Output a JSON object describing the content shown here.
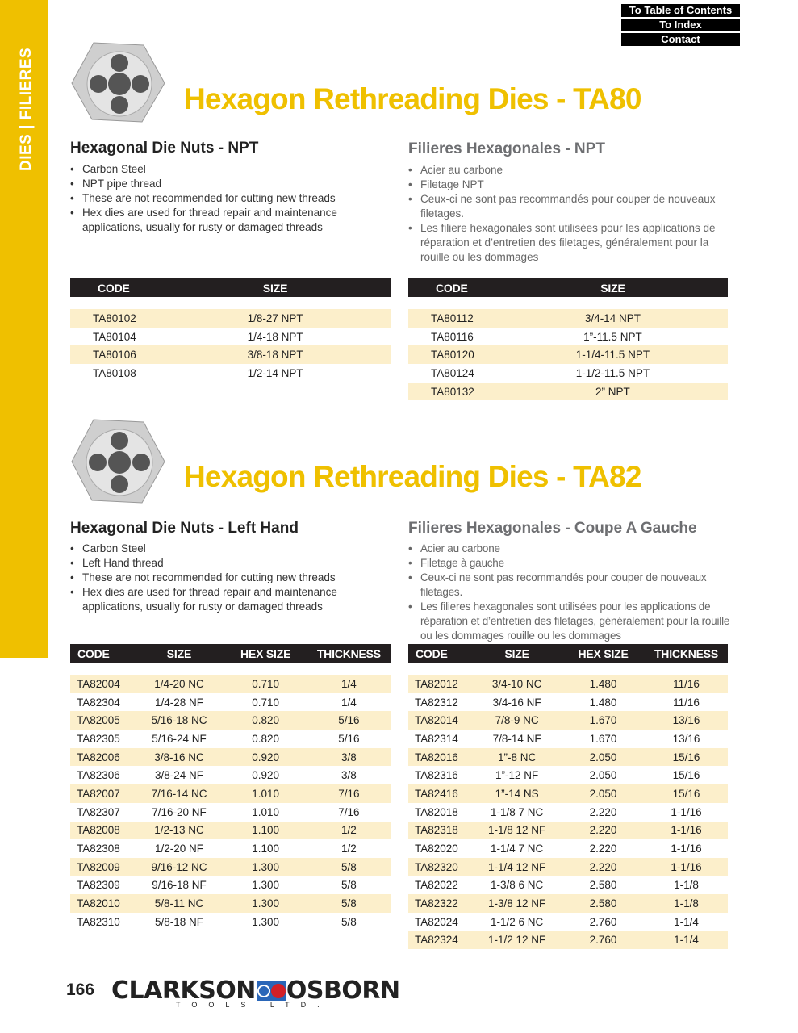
{
  "sidebar": {
    "label": "DIES | FILIERES",
    "color": "#EFC000"
  },
  "nav": {
    "links": [
      "To Table of Contents",
      "To Index",
      "Contact"
    ]
  },
  "colors": {
    "accent": "#EFC000",
    "header_bg": "#231f20",
    "row_stripe": "#FCEFCB"
  },
  "section1": {
    "title": "Hexagon Rethreading Dies - TA80",
    "en": {
      "heading": "Hexagonal Die Nuts - NPT",
      "bullets": [
        "Carbon Steel",
        "NPT pipe thread",
        "These are not recommended for cutting new threads",
        "Hex dies are used for thread repair and maintenance applications, usually for rusty or damaged threads"
      ]
    },
    "fr": {
      "heading": "Filieres Hexagonales - NPT",
      "bullets": [
        "Acier au carbone",
        "Filetage NPT",
        "Ceux-ci ne sont pas recommandés pour couper de nouveaux filetages.",
        "Les filiere hexagonales sont utilisées pour les applications de réparation et d’entretien des filetages, généralement pour la rouille ou les dommages"
      ]
    },
    "tables": [
      {
        "columns": [
          "CODE",
          "SIZE"
        ],
        "rows": [
          [
            "TA80102",
            "1/8-27 NPT"
          ],
          [
            "TA80104",
            "1/4-18 NPT"
          ],
          [
            "TA80106",
            "3/8-18 NPT"
          ],
          [
            "TA80108",
            "1/2-14 NPT"
          ]
        ]
      },
      {
        "columns": [
          "CODE",
          "SIZE"
        ],
        "rows": [
          [
            "TA80112",
            "3/4-14 NPT"
          ],
          [
            "TA80116",
            "1”-11.5 NPT"
          ],
          [
            "TA80120",
            "1-1/4-11.5 NPT"
          ],
          [
            "TA80124",
            "1-1/2-11.5 NPT"
          ],
          [
            "TA80132",
            "2” NPT"
          ]
        ]
      }
    ]
  },
  "section2": {
    "title": "Hexagon Rethreading Dies - TA82",
    "en": {
      "heading": "Hexagonal Die Nuts - Left Hand",
      "bullets": [
        "Carbon Steel",
        "Left Hand thread",
        "These are not recommended for cutting new threads",
        "Hex dies are used for thread repair and maintenance applications, usually for rusty or damaged threads"
      ]
    },
    "fr": {
      "heading": "Filieres Hexagonales - Coupe A Gauche",
      "bullets": [
        "Acier au carbone",
        "Filetage à gauche",
        "Ceux-ci ne sont pas recommandés pour couper de nouveaux filetages.",
        "Les filieres hexagonales sont utilisées pour les applications de réparation et d’entretien des filetages, généralement pour la rouille ou les dommages rouille ou les dommages"
      ]
    },
    "tables": [
      {
        "columns": [
          "CODE",
          "SIZE",
          "HEX SIZE",
          "THICKNESS"
        ],
        "rows": [
          [
            "TA82004",
            "1/4-20 NC",
            "0.710",
            "1/4"
          ],
          [
            "TA82304",
            "1/4-28 NF",
            "0.710",
            "1/4"
          ],
          [
            "TA82005",
            "5/16-18 NC",
            "0.820",
            "5/16"
          ],
          [
            "TA82305",
            "5/16-24 NF",
            "0.820",
            "5/16"
          ],
          [
            "TA82006",
            "3/8-16 NC",
            "0.920",
            "3/8"
          ],
          [
            "TA82306",
            "3/8-24 NF",
            "0.920",
            "3/8"
          ],
          [
            "TA82007",
            "7/16-14 NC",
            "1.010",
            "7/16"
          ],
          [
            "TA82307",
            "7/16-20 NF",
            "1.010",
            "7/16"
          ],
          [
            "TA82008",
            "1/2-13 NC",
            "1.100",
            "1/2"
          ],
          [
            "TA82308",
            "1/2-20 NF",
            "1.100",
            "1/2"
          ],
          [
            "TA82009",
            "9/16-12 NC",
            "1.300",
            "5/8"
          ],
          [
            "TA82309",
            "9/16-18 NF",
            "1.300",
            "5/8"
          ],
          [
            "TA82010",
            "5/8-11 NC",
            "1.300",
            "5/8"
          ],
          [
            "TA82310",
            "5/8-18 NF",
            "1.300",
            "5/8"
          ]
        ]
      },
      {
        "columns": [
          "CODE",
          "SIZE",
          "HEX SIZE",
          "THICKNESS"
        ],
        "rows": [
          [
            "TA82012",
            "3/4-10 NC",
            "1.480",
            "11/16"
          ],
          [
            "TA82312",
            "3/4-16 NF",
            "1.480",
            "11/16"
          ],
          [
            "TA82014",
            "7/8-9 NC",
            "1.670",
            "13/16"
          ],
          [
            "TA82314",
            "7/8-14 NF",
            "1.670",
            "13/16"
          ],
          [
            "TA82016",
            "1”-8 NC",
            "2.050",
            "15/16"
          ],
          [
            "TA82316",
            "1”-12 NF",
            "2.050",
            "15/16"
          ],
          [
            "TA82416",
            "1”-14 NS",
            "2.050",
            "15/16"
          ],
          [
            "TA82018",
            "1-1/8 7 NC",
            "2.220",
            "1-1/16"
          ],
          [
            "TA82318",
            "1-1/8 12 NF",
            "2.220",
            "1-1/16"
          ],
          [
            "TA82020",
            "1-1/4 7 NC",
            "2.220",
            "1-1/16"
          ],
          [
            "TA82320",
            "1-1/4 12 NF",
            "2.220",
            "1-1/16"
          ],
          [
            "TA82022",
            "1-3/8 6 NC",
            "2.580",
            "1-1/8"
          ],
          [
            "TA82322",
            "1-3/8 12 NF",
            "2.580",
            "1-1/8"
          ],
          [
            "TA82024",
            "1-1/2 6 NC",
            "2.760",
            "1-1/4"
          ],
          [
            "TA82324",
            "1-1/2 12 NF",
            "2.760",
            "1-1/4"
          ]
        ]
      }
    ]
  },
  "footer": {
    "page_number": "166",
    "logo_left": "CLARKSON",
    "logo_right": "OSBORN",
    "logo_tagline": "TOOLS LTD."
  }
}
